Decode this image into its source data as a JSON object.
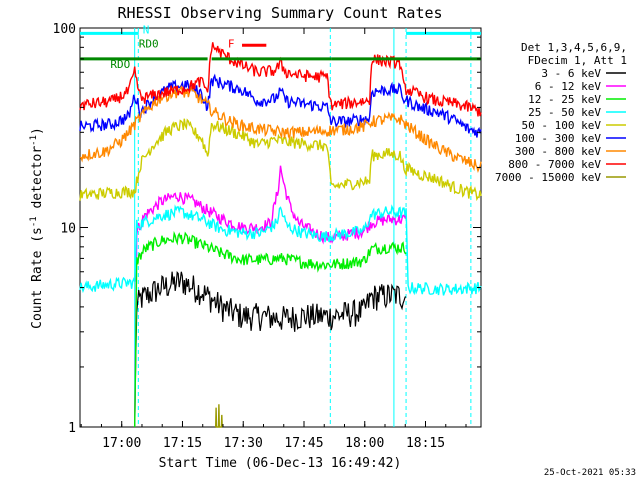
{
  "chart_data": {
    "type": "line",
    "title": "RHESSI Observing Summary Count Rates",
    "xlabel": "Start Time (06-Dec-13 16:49:42)",
    "ylabel_main": "Count Rate (s",
    "ylabel_sup": "-1",
    "ylabel_tail": " detector",
    "ylabel_end": ")",
    "y_scale": "log",
    "ylim": [
      1,
      100
    ],
    "xlim_minutes": [
      0,
      99
    ],
    "x_ticks": [
      {
        "label": "17:00",
        "minute": 10.3
      },
      {
        "label": "17:15",
        "minute": 25.3
      },
      {
        "label": "17:30",
        "minute": 40.3
      },
      {
        "label": "17:45",
        "minute": 55.3
      },
      {
        "label": "18:00",
        "minute": 70.3
      },
      {
        "label": "18:15",
        "minute": 85.3
      }
    ],
    "y_ticks": [
      {
        "label": "100",
        "value": 100
      },
      {
        "label": "10",
        "value": 10
      },
      {
        "label": "1",
        "value": 1
      }
    ],
    "legend_header": [
      "Det 1,3,4,5,6,9,",
      "FDecim 1, Att 1"
    ],
    "grid": false,
    "series": [
      {
        "name": "3 - 6 keV",
        "color": "#000000",
        "points": [
          [
            13.5,
            1.0
          ],
          [
            14.0,
            4.0
          ],
          [
            15,
            4.4
          ],
          [
            20,
            5.0
          ],
          [
            25,
            5.4
          ],
          [
            30,
            4.8
          ],
          [
            35,
            4.0
          ],
          [
            40,
            3.6
          ],
          [
            45,
            3.6
          ],
          [
            50,
            3.5
          ],
          [
            55,
            3.6
          ],
          [
            58,
            3.6
          ],
          [
            62,
            3.6
          ],
          [
            66,
            3.7
          ],
          [
            70,
            3.8
          ],
          [
            72,
            4.5
          ],
          [
            78,
            4.6
          ],
          [
            80.5,
            4.5
          ],
          [
            80.6,
            3.3
          ]
        ]
      },
      {
        "name": "6 - 12 keV",
        "color": "#ff00ff",
        "points": [
          [
            13.5,
            1.0
          ],
          [
            14.0,
            9.5
          ],
          [
            16,
            11.5
          ],
          [
            20,
            13.5
          ],
          [
            24,
            14.5
          ],
          [
            28,
            13.5
          ],
          [
            32,
            12.0
          ],
          [
            36,
            10.8
          ],
          [
            40,
            10.0
          ],
          [
            44,
            10.0
          ],
          [
            47,
            10.5
          ],
          [
            48.8,
            15
          ],
          [
            49.5,
            20
          ],
          [
            50.5,
            16
          ],
          [
            52,
            12.5
          ],
          [
            54,
            10.5
          ],
          [
            58,
            9.4
          ],
          [
            62,
            8.8
          ],
          [
            66,
            9.2
          ],
          [
            70,
            9.6
          ],
          [
            72,
            10.6
          ],
          [
            76,
            11.0
          ],
          [
            80.5,
            11.0
          ],
          [
            80.6,
            3.0
          ]
        ]
      },
      {
        "name": "12 - 25 keV",
        "color": "#00ee00",
        "points": [
          [
            13.5,
            1.0
          ],
          [
            14.0,
            6.8
          ],
          [
            16,
            7.8
          ],
          [
            20,
            8.6
          ],
          [
            25,
            8.9
          ],
          [
            30,
            8.2
          ],
          [
            35,
            7.4
          ],
          [
            40,
            6.9
          ],
          [
            45,
            6.9
          ],
          [
            50,
            7.0
          ],
          [
            55,
            6.7
          ],
          [
            60,
            6.5
          ],
          [
            65,
            6.6
          ],
          [
            70,
            6.8
          ],
          [
            72,
            7.8
          ],
          [
            76,
            8.0
          ],
          [
            80.5,
            7.9
          ],
          [
            80.6,
            2.9
          ]
        ]
      },
      {
        "name": "25 - 50 keV",
        "color": "#00ffff",
        "points": [
          [
            0,
            5.0
          ],
          [
            8,
            5.2
          ],
          [
            13.5,
            5.3
          ],
          [
            14.0,
            10.3
          ],
          [
            20,
            11.5
          ],
          [
            25,
            12.0
          ],
          [
            30,
            11.0
          ],
          [
            35,
            9.8
          ],
          [
            40,
            9.4
          ],
          [
            45,
            9.4
          ],
          [
            48.5,
            10.5
          ],
          [
            49.5,
            12.5
          ],
          [
            51,
            10.2
          ],
          [
            55,
            9.4
          ],
          [
            60,
            9.0
          ],
          [
            65,
            9.3
          ],
          [
            70,
            9.6
          ],
          [
            72,
            11.6
          ],
          [
            76,
            12.0
          ],
          [
            80.5,
            11.8
          ],
          [
            81,
            5.0
          ],
          [
            90,
            4.9
          ],
          [
            99,
            5.0
          ]
        ]
      },
      {
        "name": "50 - 100 keV",
        "color": "#cccc00",
        "points": [
          [
            0,
            14.5
          ],
          [
            8,
            15.0
          ],
          [
            13.5,
            15.2
          ],
          [
            15,
            21
          ],
          [
            18,
            26
          ],
          [
            22,
            31
          ],
          [
            26,
            33
          ],
          [
            30,
            28
          ],
          [
            31.5,
            23
          ],
          [
            32.5,
            33
          ],
          [
            36,
            31
          ],
          [
            40,
            29
          ],
          [
            44,
            26
          ],
          [
            48,
            27.5
          ],
          [
            50,
            27
          ],
          [
            54,
            26.5
          ],
          [
            58,
            26
          ],
          [
            61,
            25.5
          ],
          [
            62,
            16
          ],
          [
            66,
            16.5
          ],
          [
            70,
            17
          ],
          [
            71.5,
            17
          ],
          [
            72,
            23
          ],
          [
            76,
            23.5
          ],
          [
            79,
            23
          ],
          [
            80,
            20
          ],
          [
            84,
            18.5
          ],
          [
            88,
            17.5
          ],
          [
            92,
            16
          ],
          [
            96,
            15
          ],
          [
            99,
            14.5
          ]
        ]
      },
      {
        "name": "100 - 300 keV",
        "color": "#0000ff",
        "points": [
          [
            0,
            32
          ],
          [
            8,
            33
          ],
          [
            12,
            36
          ],
          [
            13.5,
            46
          ],
          [
            15,
            38
          ],
          [
            18,
            44
          ],
          [
            22,
            50
          ],
          [
            26,
            52
          ],
          [
            30,
            47
          ],
          [
            31.5,
            40
          ],
          [
            32.5,
            55
          ],
          [
            36,
            52
          ],
          [
            40,
            49
          ],
          [
            44,
            43
          ],
          [
            48,
            44
          ],
          [
            49.5,
            48
          ],
          [
            51,
            43
          ],
          [
            54,
            42
          ],
          [
            58,
            41
          ],
          [
            61,
            40
          ],
          [
            62,
            34
          ],
          [
            66,
            34
          ],
          [
            70,
            35
          ],
          [
            71.5,
            35
          ],
          [
            72,
            48
          ],
          [
            76,
            49
          ],
          [
            79,
            49
          ],
          [
            80,
            44
          ],
          [
            84,
            40
          ],
          [
            88,
            38
          ],
          [
            92,
            35
          ],
          [
            96,
            31
          ],
          [
            99,
            30
          ]
        ]
      },
      {
        "name": "300 - 800 keV",
        "color": "#ff8800",
        "points": [
          [
            0,
            23
          ],
          [
            6,
            24
          ],
          [
            10,
            27
          ],
          [
            12,
            30
          ],
          [
            14,
            34
          ],
          [
            17,
            40
          ],
          [
            20,
            45
          ],
          [
            24,
            48
          ],
          [
            28,
            47
          ],
          [
            31,
            42
          ],
          [
            33,
            38
          ],
          [
            37,
            34
          ],
          [
            41,
            32
          ],
          [
            45,
            31
          ],
          [
            50,
            30
          ],
          [
            55,
            30
          ],
          [
            60,
            30.5
          ],
          [
            65,
            31
          ],
          [
            70,
            32
          ],
          [
            72,
            34
          ],
          [
            76,
            35
          ],
          [
            79,
            35
          ],
          [
            82,
            31
          ],
          [
            86,
            27
          ],
          [
            90,
            24
          ],
          [
            94,
            22
          ],
          [
            99,
            20
          ]
        ]
      },
      {
        "name": "800 - 7000 keV",
        "color": "#ff0000",
        "points": [
          [
            0,
            41
          ],
          [
            8,
            43
          ],
          [
            12,
            48
          ],
          [
            13.5,
            60
          ],
          [
            15,
            44
          ],
          [
            18,
            46
          ],
          [
            22,
            48
          ],
          [
            26,
            50
          ],
          [
            30,
            54
          ],
          [
            31.5,
            48
          ],
          [
            32.5,
            82
          ],
          [
            36,
            72
          ],
          [
            40,
            65
          ],
          [
            44,
            60
          ],
          [
            48,
            61
          ],
          [
            49.5,
            66
          ],
          [
            51,
            60
          ],
          [
            54,
            58
          ],
          [
            58,
            57
          ],
          [
            61,
            57
          ],
          [
            62,
            41
          ],
          [
            66,
            42
          ],
          [
            70,
            43
          ],
          [
            71.5,
            43
          ],
          [
            72,
            70
          ],
          [
            76,
            68
          ],
          [
            79,
            67
          ],
          [
            80,
            50
          ],
          [
            84,
            46
          ],
          [
            88,
            43
          ],
          [
            92,
            42
          ],
          [
            96,
            40
          ],
          [
            99,
            38
          ]
        ]
      },
      {
        "name": "7000 - 15000 keV",
        "color": "#999900",
        "points": [
          [
            33.5,
            1.0
          ],
          [
            33.6,
            1.25
          ],
          [
            33.7,
            1.0
          ],
          [
            34.2,
            1.0
          ],
          [
            34.3,
            1.3
          ],
          [
            34.4,
            1.0
          ],
          [
            34.9,
            1.0
          ],
          [
            35.0,
            1.15
          ],
          [
            35.1,
            1.0
          ]
        ]
      }
    ],
    "state_bars": [
      {
        "label": "",
        "color": "#00ffff",
        "y": 94,
        "segments": [
          [
            0,
            14.5
          ],
          [
            80.5,
            99
          ]
        ]
      },
      {
        "label": "N",
        "color": "#00ffff",
        "y": 94,
        "segments": []
      },
      {
        "label": "RD0",
        "color": "#008800",
        "y": 70,
        "segments": [
          [
            0,
            31.5
          ],
          [
            32.5,
            62
          ],
          [
            62,
            99
          ]
        ]
      },
      {
        "label": "RDO",
        "color": "#008800",
        "y": 70,
        "segments": []
      },
      {
        "label": "F",
        "color": "#ff0000",
        "y": 82,
        "segments": [
          [
            40,
            46
          ]
        ]
      }
    ],
    "state_labels": [
      {
        "text": "N",
        "color": "#00ffff",
        "minute": 15.5,
        "value": 94
      },
      {
        "text": "RD0",
        "color": "#008800",
        "minute": 14.5,
        "value": 80
      },
      {
        "text": "RDO",
        "color": "#008800",
        "minute": 7.5,
        "value": 63
      },
      {
        "text": "F",
        "color": "#ff0000",
        "minute": 36.5,
        "value": 80
      }
    ],
    "vertical_markers": [
      {
        "minute": 13.5,
        "color": "#00ffff",
        "style": "solid",
        "range": [
          1,
          100
        ]
      },
      {
        "minute": 14.4,
        "color": "#00ffff",
        "style": "dashed",
        "range": [
          1,
          100
        ]
      },
      {
        "minute": 61.8,
        "color": "#00ffff",
        "style": "dashed",
        "range": [
          1,
          100
        ]
      },
      {
        "minute": 77.5,
        "color": "#00ffff",
        "style": "solid",
        "range": [
          1,
          100
        ]
      },
      {
        "minute": 80.5,
        "color": "#00ffff",
        "style": "dashed",
        "range": [
          1,
          100
        ]
      },
      {
        "minute": 96.5,
        "color": "#00ffff",
        "style": "dashed",
        "range": [
          1,
          100
        ]
      }
    ],
    "timestamp": "25-Oct-2021 05:33"
  }
}
